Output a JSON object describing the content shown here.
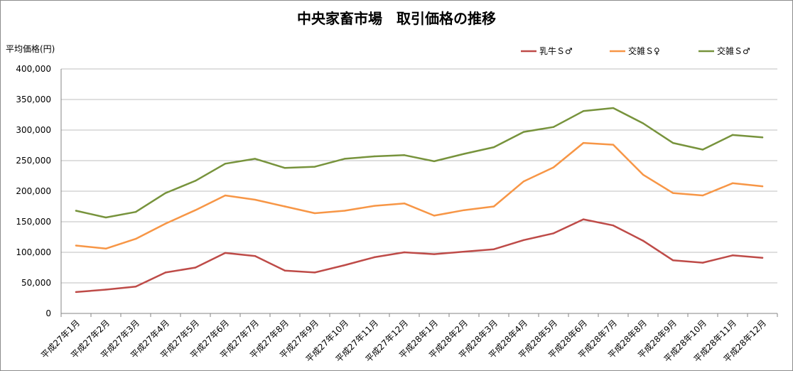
{
  "chart_data": {
    "type": "line",
    "title": "中央家畜市場　取引価格の推移",
    "ylabel": "平均価格(円)",
    "xlabel": "",
    "ylim": [
      0,
      400000
    ],
    "yticks": [
      "0",
      "50,000",
      "100,000",
      "150,000",
      "200,000",
      "250,000",
      "300,000",
      "350,000",
      "400,000"
    ],
    "ytick_values": [
      0,
      50000,
      100000,
      150000,
      200000,
      250000,
      300000,
      350000,
      400000
    ],
    "grid": true,
    "legend_position": "top-right",
    "categories": [
      "平成27年1月",
      "平成27年2月",
      "平成27年3月",
      "平成27年4月",
      "平成27年5月",
      "平成27年6月",
      "平成27年7月",
      "平成27年8月",
      "平成27年9月",
      "平成27年10月",
      "平成27年11月",
      "平成27年12月",
      "平成28年1月",
      "平成28年2月",
      "平成28年3月",
      "平成28年4月",
      "平成28年5月",
      "平成28年6月",
      "平成28年7月",
      "平成28年8月",
      "平成28年9月",
      "平成28年10月",
      "平成28年11月",
      "平成28年12月"
    ],
    "series": [
      {
        "name": "乳牛Ｓ♂",
        "color": "#be4b48",
        "values": [
          35000,
          39000,
          44000,
          67000,
          75000,
          99000,
          94000,
          70000,
          67000,
          79000,
          92000,
          100000,
          97000,
          101000,
          105000,
          120000,
          131000,
          154000,
          144000,
          119000,
          87000,
          83000,
          95000,
          91000
        ]
      },
      {
        "name": "交雑Ｓ♀",
        "color": "#f79646",
        "values": [
          111000,
          106000,
          122000,
          147000,
          169000,
          193000,
          186000,
          175000,
          164000,
          168000,
          176000,
          180000,
          160000,
          169000,
          175000,
          216000,
          239000,
          279000,
          276000,
          227000,
          197000,
          193000,
          213000,
          208000
        ]
      },
      {
        "name": "交雑Ｓ♂",
        "color": "#77933c",
        "values": [
          168000,
          157000,
          166000,
          197000,
          217000,
          245000,
          253000,
          238000,
          240000,
          253000,
          257000,
          259000,
          249000,
          261000,
          272000,
          297000,
          305000,
          331000,
          336000,
          311000,
          279000,
          268000,
          292000,
          288000
        ]
      }
    ]
  }
}
